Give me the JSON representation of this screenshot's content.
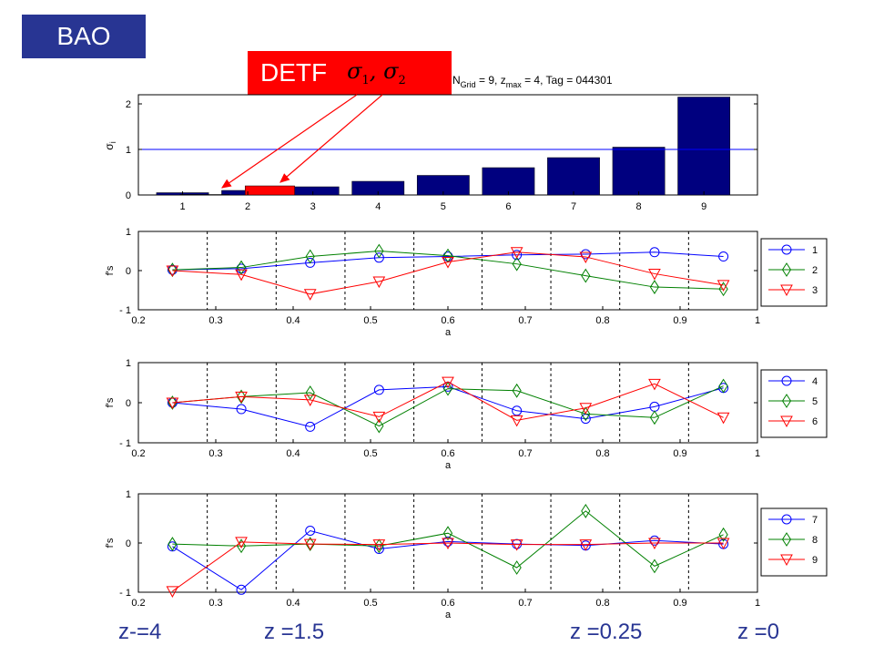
{
  "banner": {
    "label": "BAO"
  },
  "detf": {
    "label": "DETF",
    "sigma_symbol": "σ",
    "sub1": "1",
    "sub2": "2",
    "separator": ","
  },
  "colors": {
    "bar": "#00007f",
    "bar_highlight": "#ff0000",
    "series_1": "#0000ff",
    "series_2": "#008000",
    "series_3": "#ff0000",
    "banner_bg": "#283593",
    "z_text": "#283593"
  },
  "z_labels": [
    "z-=4",
    "z =1.5",
    "z =0.25",
    "z =0"
  ],
  "chart_data": [
    {
      "type": "bar",
      "title_parts": {
        "n_grid": "9",
        "z_max": "4",
        "tag": "044301"
      },
      "ylabel": "σ_i",
      "categories": [
        "1",
        "2",
        "3",
        "4",
        "5",
        "6",
        "7",
        "8",
        "9"
      ],
      "values": [
        0.05,
        0.1,
        0.18,
        0.3,
        0.43,
        0.6,
        0.82,
        1.05,
        2.15
      ],
      "highlight_values": [
        0.01,
        0.2
      ],
      "reference_line": 1,
      "ylim": [
        0,
        2.2
      ],
      "yticks": [
        0,
        1,
        2
      ]
    },
    {
      "type": "line",
      "xlabel": "a",
      "ylabel": "f's",
      "xlim": [
        0.2,
        1
      ],
      "ylim": [
        -1,
        1
      ],
      "xticks": [
        0.2,
        0.3,
        0.4,
        0.5,
        0.6,
        0.7,
        0.8,
        0.9,
        1
      ],
      "yticks": [
        -1,
        0,
        1
      ],
      "dashed_x": [
        0.289,
        0.378,
        0.467,
        0.556,
        0.644,
        0.733,
        0.822,
        0.911
      ],
      "x": [
        0.244,
        0.333,
        0.422,
        0.511,
        0.6,
        0.689,
        0.778,
        0.867,
        0.956
      ],
      "series": [
        {
          "name": "1",
          "marker": "circle",
          "values": [
            0.02,
            0.05,
            0.2,
            0.33,
            0.36,
            0.4,
            0.42,
            0.47,
            0.36
          ]
        },
        {
          "name": "2",
          "marker": "diamond",
          "values": [
            0.02,
            0.08,
            0.36,
            0.5,
            0.38,
            0.17,
            -0.13,
            -0.42,
            -0.47
          ]
        },
        {
          "name": "3",
          "marker": "triangle",
          "values": [
            0.0,
            -0.1,
            -0.6,
            -0.28,
            0.22,
            0.47,
            0.35,
            -0.08,
            -0.37
          ]
        }
      ]
    },
    {
      "type": "line",
      "xlabel": "a",
      "ylabel": "f's",
      "xlim": [
        0.2,
        1
      ],
      "ylim": [
        -1,
        1
      ],
      "xticks": [
        0.2,
        0.3,
        0.4,
        0.5,
        0.6,
        0.7,
        0.8,
        0.9,
        1
      ],
      "yticks": [
        -1,
        0,
        1
      ],
      "dashed_x": [
        0.289,
        0.378,
        0.467,
        0.556,
        0.644,
        0.733,
        0.822,
        0.911
      ],
      "x": [
        0.244,
        0.333,
        0.422,
        0.511,
        0.6,
        0.689,
        0.778,
        0.867,
        0.956
      ],
      "series": [
        {
          "name": "4",
          "marker": "circle",
          "values": [
            0.0,
            -0.16,
            -0.6,
            0.32,
            0.4,
            -0.2,
            -0.4,
            -0.1,
            0.37
          ]
        },
        {
          "name": "5",
          "marker": "diamond",
          "values": [
            0.0,
            0.15,
            0.25,
            -0.58,
            0.35,
            0.3,
            -0.28,
            -0.37,
            0.42
          ]
        },
        {
          "name": "6",
          "marker": "triangle",
          "values": [
            0.0,
            0.15,
            0.07,
            -0.35,
            0.52,
            -0.44,
            -0.13,
            0.47,
            -0.37
          ]
        }
      ]
    },
    {
      "type": "line",
      "xlabel": "a",
      "ylabel": "f's",
      "xlim": [
        0.2,
        1
      ],
      "ylim": [
        -1,
        1
      ],
      "xticks": [
        0.2,
        0.3,
        0.4,
        0.5,
        0.6,
        0.7,
        0.8,
        0.9,
        1
      ],
      "yticks": [
        -1,
        0,
        1
      ],
      "dashed_x": [
        0.289,
        0.378,
        0.467,
        0.556,
        0.644,
        0.733,
        0.822,
        0.911
      ],
      "x": [
        0.244,
        0.333,
        0.422,
        0.511,
        0.6,
        0.689,
        0.778,
        0.867,
        0.956
      ],
      "series": [
        {
          "name": "7",
          "marker": "circle",
          "values": [
            -0.07,
            -0.95,
            0.25,
            -0.12,
            0.03,
            -0.02,
            -0.05,
            0.05,
            -0.02
          ]
        },
        {
          "name": "8",
          "marker": "diamond",
          "values": [
            -0.02,
            -0.06,
            -0.02,
            -0.06,
            0.2,
            -0.5,
            0.65,
            -0.47,
            0.17
          ]
        },
        {
          "name": "9",
          "marker": "triangle",
          "values": [
            -0.98,
            0.02,
            -0.02,
            -0.03,
            0.0,
            -0.03,
            -0.03,
            0.0,
            0.0
          ]
        }
      ]
    }
  ]
}
